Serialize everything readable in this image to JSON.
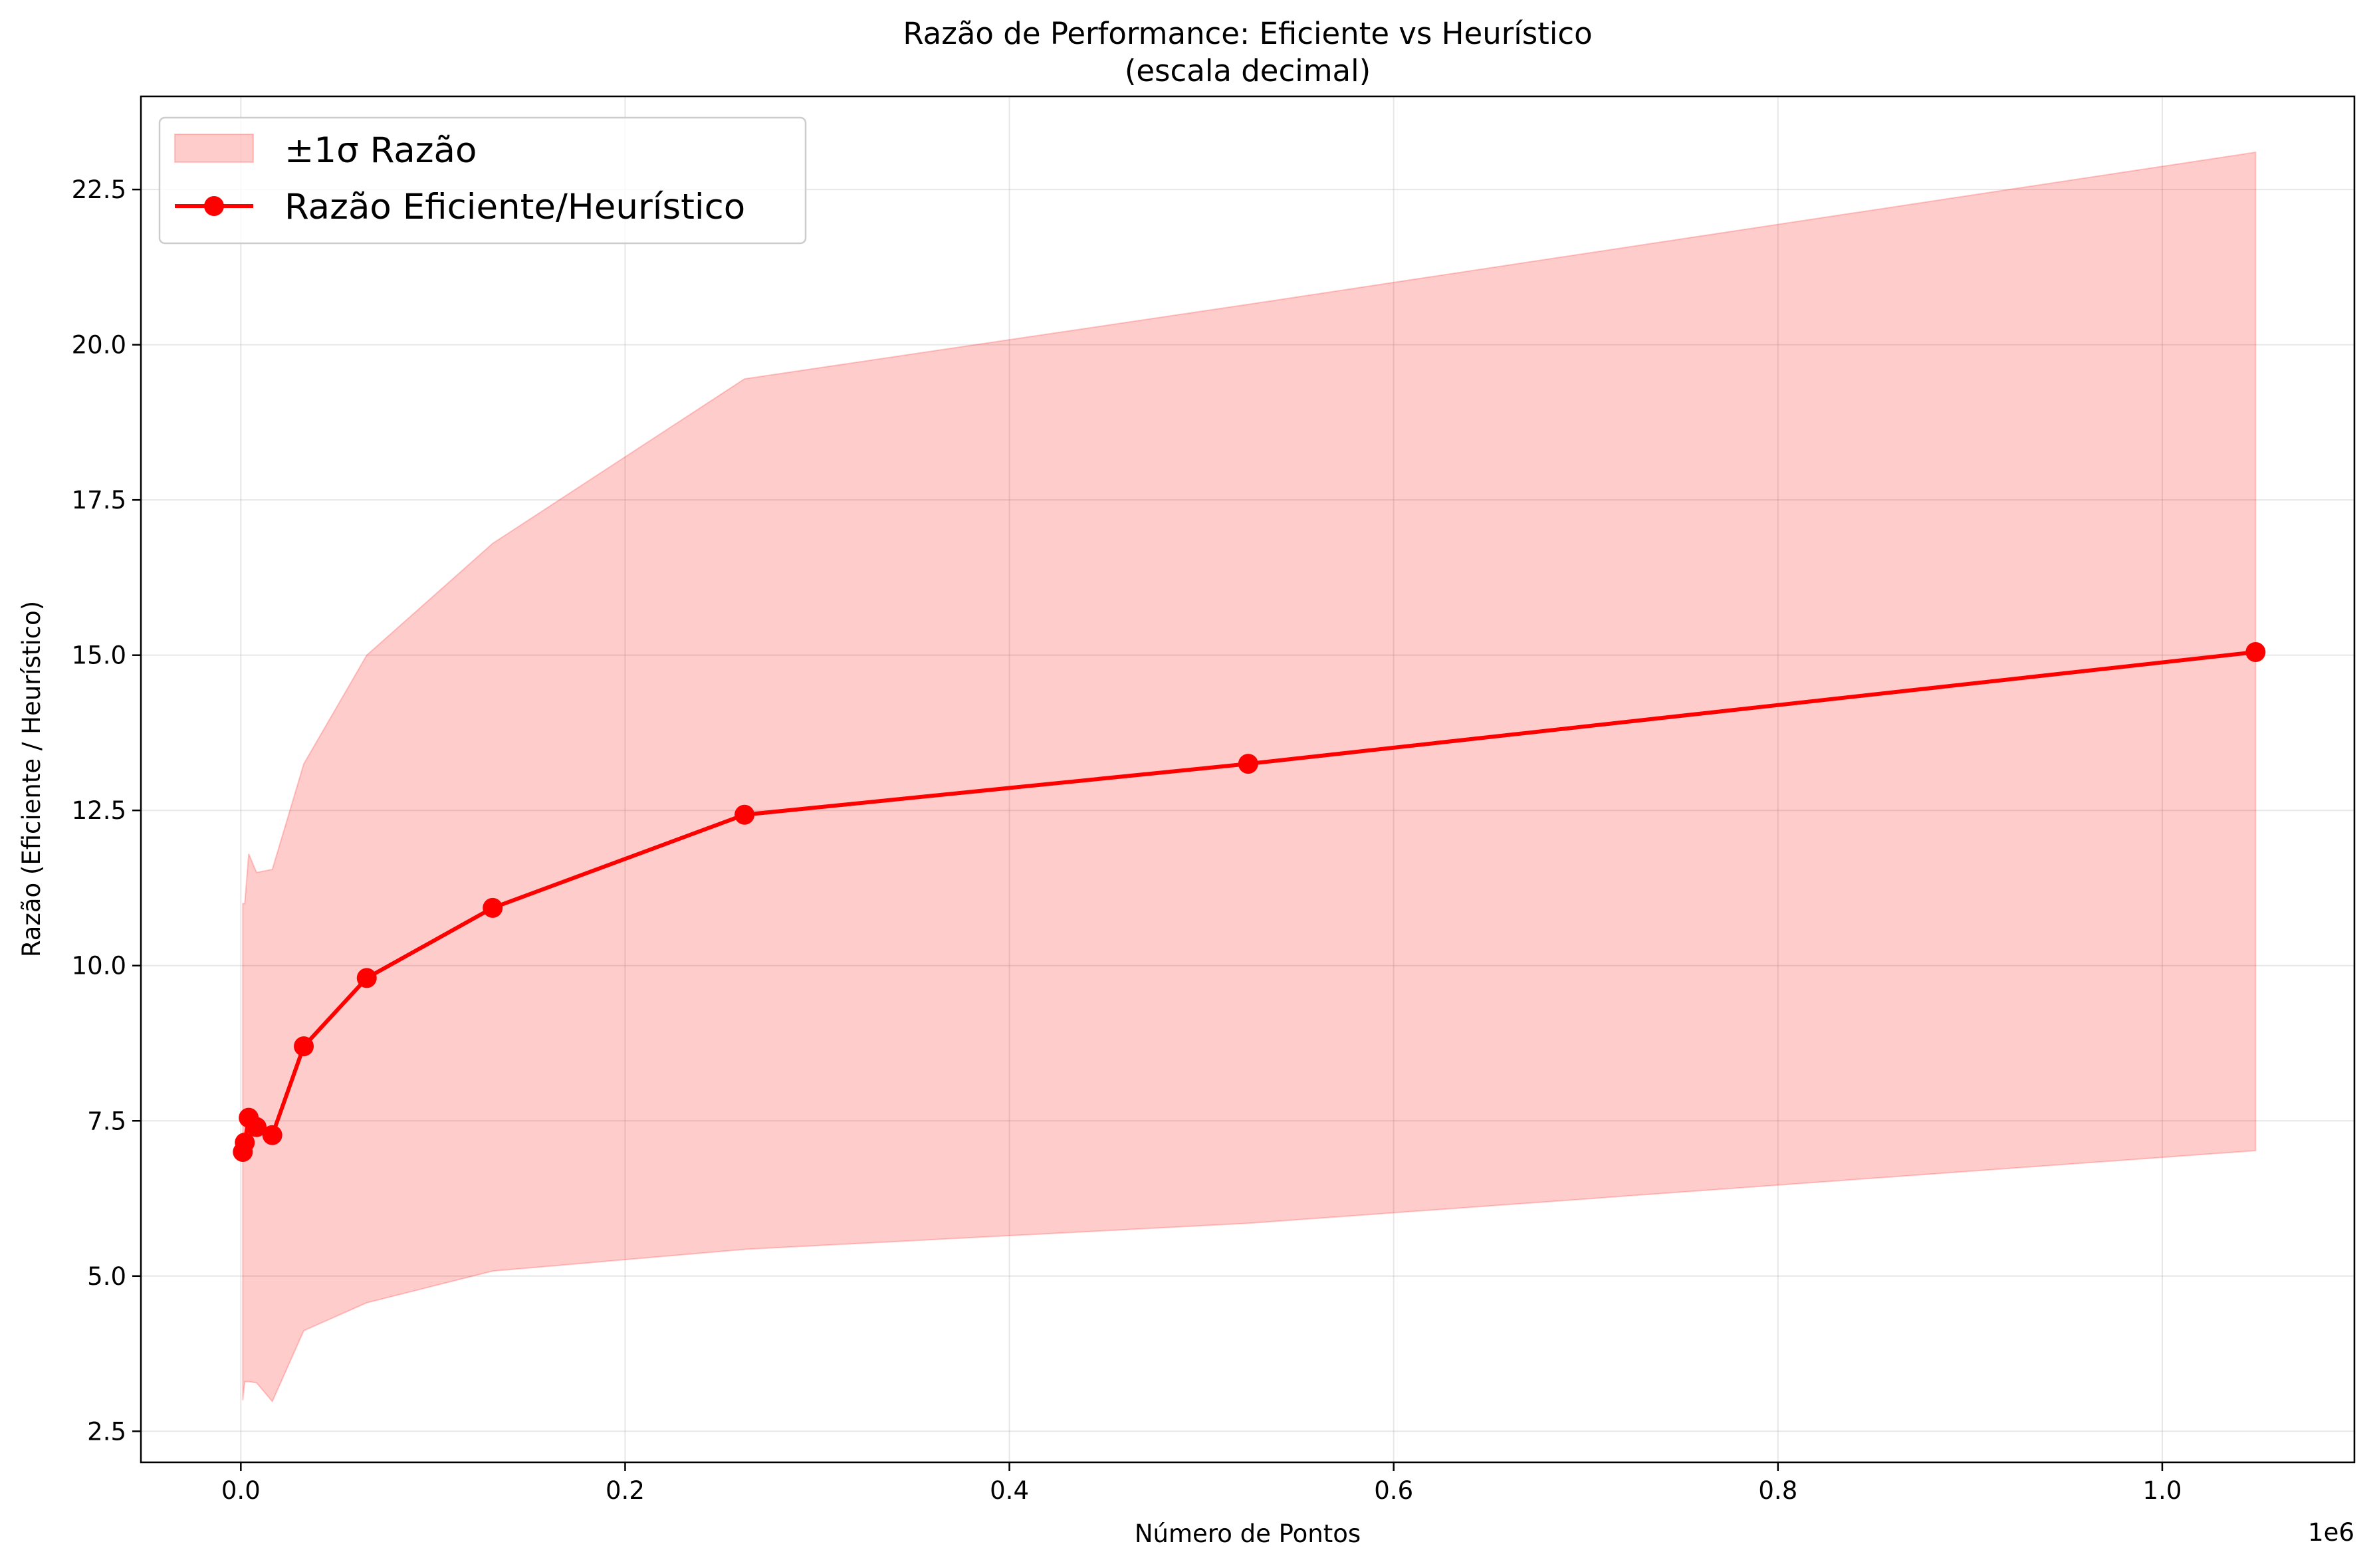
{
  "chart_data": {
    "type": "line",
    "title": "Razão de Performance: Eficiente vs Heurístico",
    "subtitle": "(escala decimal)",
    "xlabel": "Número de Pontos",
    "ylabel": "Razão (Eficiente / Heurístico)",
    "x_offset_label": "1e6",
    "x_tick_labels": [
      "0.0",
      "0.2",
      "0.4",
      "0.6",
      "0.8",
      "1.0"
    ],
    "y_tick_labels": [
      "2.5",
      "5.0",
      "7.5",
      "10.0",
      "12.5",
      "15.0",
      "17.5",
      "20.0",
      "22.5"
    ],
    "x_tick_values": [
      0,
      200000,
      400000,
      600000,
      800000,
      1000000
    ],
    "y_tick_values": [
      2.5,
      5.0,
      7.5,
      10.0,
      12.5,
      15.0,
      17.5,
      20.0,
      22.5
    ],
    "xlim": [
      -52000,
      1100000
    ],
    "ylim": [
      2.0,
      24.0
    ],
    "grid": true,
    "legend_position": "upper-left",
    "series": [
      {
        "name": "Razão Eficiente/Heurístico",
        "color": "#ff0000",
        "marker": "circle",
        "x": [
          1024,
          2048,
          4096,
          8192,
          16384,
          32768,
          65536,
          131072,
          262144,
          524288,
          1048576
        ],
        "y": [
          7.0,
          7.15,
          7.55,
          7.4,
          7.27,
          8.7,
          9.8,
          10.93,
          12.43,
          13.25,
          15.05
        ]
      }
    ],
    "band": {
      "name": "±1σ Razão",
      "color": "#ff0000",
      "opacity": 0.2,
      "x": [
        1024,
        2048,
        4096,
        8192,
        16384,
        32768,
        65536,
        131072,
        262144,
        524288,
        1048576
      ],
      "upper": [
        11.0,
        11.0,
        11.8,
        11.5,
        11.55,
        13.25,
        15.0,
        16.8,
        19.45,
        20.65,
        23.1
      ],
      "lower": [
        3.0,
        3.3,
        3.3,
        3.28,
        2.98,
        4.12,
        4.57,
        5.08,
        5.43,
        5.85,
        7.02
      ]
    }
  }
}
